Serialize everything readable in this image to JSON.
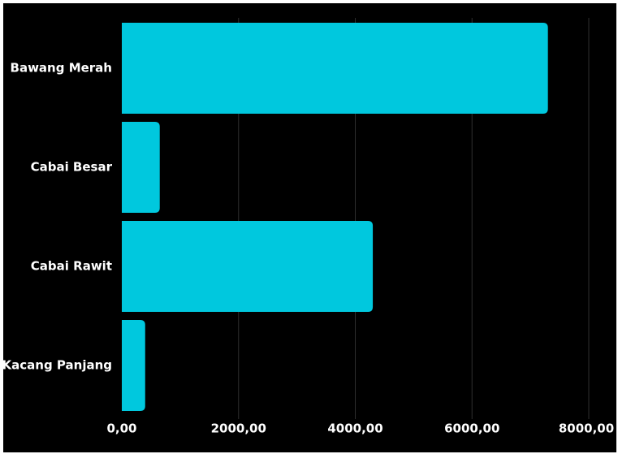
{
  "chart_data": {
    "type": "bar",
    "orientation": "horizontal",
    "title": "",
    "xlabel": "",
    "ylabel": "",
    "categories": [
      "Bawang Merah",
      "Cabai Besar",
      "Cabai Rawit",
      "Kacang Panjang"
    ],
    "values": [
      7300,
      650,
      4300,
      400
    ],
    "xlim": [
      0,
      8000
    ],
    "x_ticks": [
      0,
      2000,
      4000,
      6000,
      8000
    ],
    "x_tick_labels": [
      "0,00",
      "2000,00",
      "4000,00",
      "6000,00",
      "8000,00"
    ],
    "grid": "vertical",
    "legend": "none"
  },
  "colors": {
    "background": "#000000",
    "bar": "#00C8DE",
    "grid": "#2e2e2e",
    "text": "#ffffff",
    "border": "#ffffff"
  }
}
